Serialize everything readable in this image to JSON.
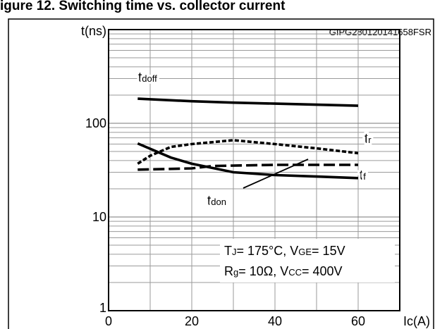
{
  "header": {
    "partial_title": "igure 12. Switching time vs. collector current"
  },
  "chart_data": {
    "type": "line",
    "figure_id": "GIPG280120141658FSR",
    "y_unit_label": "t(ns)",
    "x_unit_label": "Ic(A)",
    "xscale": "linear",
    "yscale": "log",
    "xlim": [
      0,
      70
    ],
    "ylim": [
      1,
      1000
    ],
    "xticks": [
      {
        "value": 0,
        "label": "0"
      },
      {
        "value": 20,
        "label": "20"
      },
      {
        "value": 40,
        "label": "40"
      },
      {
        "value": 60,
        "label": "60"
      }
    ],
    "yticks": [
      {
        "value": 1,
        "label": "1"
      },
      {
        "value": 10,
        "label": "10"
      },
      {
        "value": 100,
        "label": "100"
      }
    ],
    "grid": true,
    "series": [
      {
        "name": "tdoff",
        "label_main": "t",
        "label_sub": "doff",
        "line_style": "solid",
        "color": "#000000",
        "points": [
          [
            7,
            183
          ],
          [
            20,
            172
          ],
          [
            30,
            166
          ],
          [
            40,
            162
          ],
          [
            50,
            158
          ],
          [
            60,
            154
          ]
        ]
      },
      {
        "name": "tr",
        "label_main": "t",
        "label_sub": "r",
        "line_style": "dotted",
        "color": "#000000",
        "points": [
          [
            7,
            37
          ],
          [
            10,
            45
          ],
          [
            15,
            56
          ],
          [
            20,
            60
          ],
          [
            30,
            66
          ],
          [
            40,
            60
          ],
          [
            50,
            54
          ],
          [
            60,
            48
          ]
        ]
      },
      {
        "name": "tdon",
        "label_main": "t",
        "label_sub": "don",
        "line_style": "dashed",
        "color": "#000000",
        "points": [
          [
            7,
            32
          ],
          [
            20,
            33
          ],
          [
            25,
            35
          ],
          [
            40,
            36
          ],
          [
            60,
            36
          ]
        ]
      },
      {
        "name": "tf",
        "label_main": "t",
        "label_sub": "f",
        "line_style": "solid",
        "color": "#000000",
        "points": [
          [
            7,
            61
          ],
          [
            15,
            43
          ],
          [
            20,
            37
          ],
          [
            30,
            30
          ],
          [
            40,
            28
          ],
          [
            50,
            27
          ],
          [
            60,
            26
          ]
        ]
      }
    ],
    "conditions": {
      "line1": {
        "tj_main": "T",
        "tj_sub": "J",
        "tj_value": "= 175°C, V",
        "vge_sub": "GE",
        "vge_value": "= 15V"
      },
      "line2": {
        "rg_main": "R",
        "rg_sub": "g",
        "rg_value": "= 10Ω, V",
        "vcc_sub": "CC",
        "vcc_value": "= 400V"
      }
    }
  }
}
